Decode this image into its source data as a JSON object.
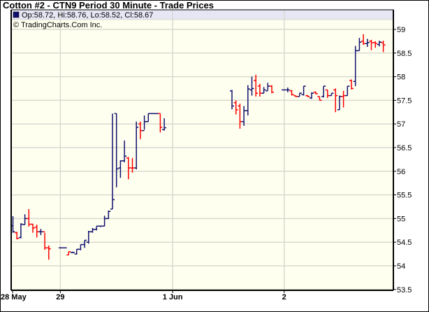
{
  "chart_data": {
    "type": "ohlc",
    "title": "Cotton #2 - CTN9 Period 30 Minute - Trade Prices",
    "legend": {
      "text": "Op:58.72, Hi:58.76, Lo:58.52, Cl:58.67",
      "swatch_color": "#10106e"
    },
    "copyright": "© TradingCharts.Com Inc.",
    "ylim": [
      53.5,
      59.25
    ],
    "y_ticks": [
      "59",
      "58.5",
      "58",
      "57.5",
      "57",
      "56.5",
      "56",
      "55.5",
      "55",
      "54.5",
      "54",
      "53.5"
    ],
    "x_ticks": [
      {
        "label": "28 May",
        "bar": 0
      },
      {
        "label": "29",
        "bar": 12
      },
      {
        "label": "1 Jun",
        "bar": 40.2
      },
      {
        "label": "2",
        "bar": 68.2
      }
    ],
    "grid": true,
    "colors": {
      "up": "#10106e",
      "down": "#ff0000",
      "grid": "#d9d9cf",
      "background": "#fffff0",
      "legend_background": "#e6e6f5"
    },
    "bars_format": [
      "bar",
      "open",
      "high",
      "low",
      "close",
      "color"
    ],
    "bars": [
      [
        0,
        54.85,
        55.05,
        54.7,
        54.72,
        "b"
      ],
      [
        1,
        54.7,
        54.72,
        54.56,
        54.58,
        "r"
      ],
      [
        2,
        54.6,
        54.9,
        54.58,
        54.88,
        "b"
      ],
      [
        3,
        54.87,
        55.09,
        54.87,
        55.0,
        "b"
      ],
      [
        4,
        55.0,
        55.2,
        54.83,
        54.88,
        "r"
      ],
      [
        5,
        54.88,
        54.89,
        54.7,
        54.8,
        "r"
      ],
      [
        6,
        54.82,
        54.87,
        54.6,
        54.72,
        "r"
      ],
      [
        7,
        54.72,
        54.78,
        54.65,
        54.72,
        "b"
      ],
      [
        8,
        54.72,
        54.7,
        54.34,
        54.38,
        "r"
      ],
      [
        9,
        54.38,
        54.43,
        54.13,
        54.36,
        "r"
      ],
      [
        12,
        54.38,
        54.38,
        54.38,
        54.38,
        "b"
      ],
      [
        13,
        54.38,
        54.38,
        54.38,
        54.38,
        "b"
      ],
      [
        14,
        54.23,
        54.3,
        54.23,
        54.3,
        "r"
      ],
      [
        15,
        54.28,
        54.3,
        54.27,
        54.28,
        "b"
      ],
      [
        16,
        54.25,
        54.35,
        54.24,
        54.35,
        "b"
      ],
      [
        17,
        54.35,
        54.45,
        54.33,
        54.45,
        "b"
      ],
      [
        18,
        54.45,
        54.54,
        54.38,
        54.54,
        "b"
      ],
      [
        19,
        54.5,
        54.74,
        54.47,
        54.72,
        "b"
      ],
      [
        20,
        54.72,
        54.8,
        54.7,
        54.77,
        "b"
      ],
      [
        21,
        54.77,
        54.84,
        54.75,
        54.84,
        "b"
      ],
      [
        22,
        54.84,
        54.84,
        54.82,
        54.84,
        "b"
      ],
      [
        23,
        54.84,
        55.06,
        54.84,
        55.0,
        "b"
      ],
      [
        24,
        55.0,
        55.17,
        54.99,
        55.15,
        "b"
      ],
      [
        25,
        55.2,
        57.22,
        55.2,
        55.4,
        "b"
      ],
      [
        26,
        57.22,
        57.22,
        55.66,
        56.05,
        "b"
      ],
      [
        27,
        56.07,
        56.23,
        55.86,
        56.22,
        "b"
      ],
      [
        28,
        56.22,
        56.65,
        56.19,
        56.32,
        "b"
      ],
      [
        29,
        56.28,
        56.3,
        55.83,
        56.07,
        "r"
      ],
      [
        30,
        56.07,
        56.28,
        55.97,
        56.07,
        "r"
      ],
      [
        31,
        56.07,
        57.05,
        56.04,
        56.93,
        "b"
      ],
      [
        32,
        57.0,
        57.05,
        56.68,
        56.86,
        "r"
      ],
      [
        33,
        56.86,
        57.18,
        56.88,
        57.05,
        "b"
      ],
      [
        34,
        57.05,
        57.22,
        57.05,
        57.22,
        "b"
      ],
      [
        35,
        57.22,
        57.22,
        57.22,
        57.22,
        "b"
      ],
      [
        36,
        57.22,
        57.22,
        57.22,
        57.22,
        "b"
      ],
      [
        37,
        57.22,
        57.22,
        56.82,
        56.93,
        "r"
      ],
      [
        38,
        56.88,
        57.12,
        56.86,
        56.92,
        "b"
      ],
      [
        55,
        57.7,
        57.72,
        57.31,
        57.38,
        "b"
      ],
      [
        56,
        57.45,
        57.5,
        57.2,
        57.3,
        "r"
      ],
      [
        57,
        57.38,
        57.43,
        56.9,
        57.05,
        "r"
      ],
      [
        58,
        57.05,
        57.38,
        56.96,
        57.28,
        "b"
      ],
      [
        59,
        57.28,
        57.82,
        57.18,
        57.74,
        "b"
      ],
      [
        60,
        57.72,
        58.0,
        57.6,
        57.75,
        "b"
      ],
      [
        61,
        57.92,
        58.04,
        57.58,
        57.65,
        "r"
      ],
      [
        62,
        57.8,
        57.85,
        57.58,
        57.65,
        "r"
      ],
      [
        63,
        57.65,
        57.78,
        57.65,
        57.72,
        "b"
      ],
      [
        64,
        57.7,
        57.87,
        57.71,
        57.8,
        "b"
      ],
      [
        65,
        57.8,
        57.82,
        57.65,
        57.67,
        "r"
      ],
      [
        68,
        57.72,
        57.72,
        57.72,
        57.72,
        "b"
      ],
      [
        69,
        57.72,
        57.77,
        57.67,
        57.72,
        "b"
      ],
      [
        70,
        57.7,
        57.72,
        57.6,
        57.62,
        "r"
      ],
      [
        71,
        57.6,
        57.6,
        57.57,
        57.58,
        "r"
      ],
      [
        72,
        57.58,
        57.66,
        57.59,
        57.65,
        "b"
      ],
      [
        73,
        57.62,
        57.8,
        57.6,
        57.8,
        "b"
      ],
      [
        74,
        57.6,
        57.61,
        57.57,
        57.58,
        "r"
      ],
      [
        75,
        57.55,
        57.67,
        57.53,
        57.65,
        "b"
      ],
      [
        76,
        57.67,
        57.69,
        57.63,
        57.64,
        "r"
      ],
      [
        77,
        57.58,
        57.58,
        57.5,
        57.5,
        "r"
      ],
      [
        78,
        57.58,
        57.8,
        57.56,
        57.8,
        "b"
      ],
      [
        79,
        57.72,
        57.72,
        57.55,
        57.6,
        "r"
      ],
      [
        80,
        57.6,
        57.65,
        57.6,
        57.65,
        "b"
      ],
      [
        81,
        57.72,
        57.75,
        57.25,
        57.6,
        "r"
      ],
      [
        82,
        57.3,
        57.6,
        57.3,
        57.58,
        "b"
      ],
      [
        83,
        57.58,
        57.7,
        57.35,
        57.6,
        "r"
      ],
      [
        84,
        57.6,
        57.8,
        57.6,
        57.8,
        "b"
      ],
      [
        85,
        57.92,
        57.94,
        57.73,
        57.75,
        "r"
      ],
      [
        86,
        57.9,
        58.65,
        57.8,
        58.55,
        "b"
      ],
      [
        87,
        58.55,
        58.82,
        58.55,
        58.73,
        "b"
      ],
      [
        88,
        58.75,
        58.9,
        58.67,
        58.7,
        "r"
      ],
      [
        89,
        58.7,
        58.8,
        58.63,
        58.72,
        "b"
      ],
      [
        90,
        58.75,
        58.78,
        58.56,
        58.72,
        "r"
      ],
      [
        91,
        58.72,
        58.75,
        58.61,
        58.7,
        "r"
      ],
      [
        92,
        58.68,
        58.76,
        58.64,
        58.73,
        "b"
      ],
      [
        93,
        58.72,
        58.76,
        58.52,
        58.67,
        "r"
      ]
    ]
  }
}
